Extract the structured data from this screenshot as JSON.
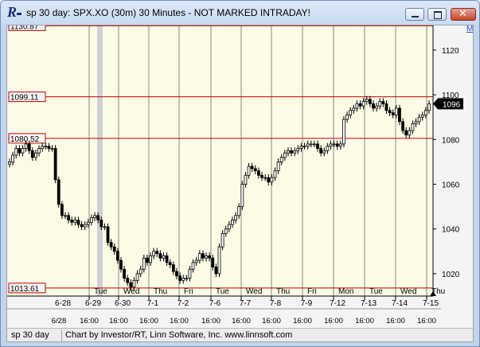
{
  "window": {
    "title": "sp 30 day: SPX.XO (30m) 30 Minutes - NOT MARKED INTRADAY!",
    "minimize_glyph": "",
    "maximize_glyph": "",
    "close_glyph": "✕"
  },
  "toolbar": {
    "m_marker": "M"
  },
  "colors": {
    "price_line": "#c00000",
    "bars": "#000000",
    "plot_bg": "#fbfbe6",
    "vertical_gridlines": "#8a8a8a",
    "current_price_bg": "#000000"
  },
  "status_bar": {
    "chart_name": "sp 30 day",
    "credit": "Chart by Investor/RT, Linn Software, Inc. www.linnsoft.com"
  },
  "chart_data": {
    "type": "candlestick",
    "title": "",
    "ylim": [
      1010,
      1131
    ],
    "y_ticks": [
      1020,
      1040,
      1060,
      1080,
      1100,
      1120
    ],
    "y_tick_labels": [
      "1020",
      "1040",
      "1060",
      "1080",
      "1100",
      "1120"
    ],
    "horizontal_lines": [
      {
        "label": "1130.87",
        "value": 1130.87
      },
      {
        "label": "1099.11",
        "value": 1099.11
      },
      {
        "label": "1080.52",
        "value": 1080.52
      },
      {
        "label": "1013.61",
        "value": 1013.61
      }
    ],
    "current_price": {
      "label": "1096",
      "value": 1096
    },
    "top_left_partial_text": "",
    "days": [
      {
        "weekday": "",
        "date": "6-28",
        "lower": "6/28"
      },
      {
        "weekday": "Tue",
        "date": "6-29",
        "lower": "16:00"
      },
      {
        "weekday": "Wed",
        "date": "6-30",
        "lower": "16:00"
      },
      {
        "weekday": "Thu",
        "date": "7-1",
        "lower": "16:00"
      },
      {
        "weekday": "Fri",
        "date": "7-2",
        "lower": "16:00"
      },
      {
        "weekday": "Tue",
        "date": "7-6",
        "lower": "16:00"
      },
      {
        "weekday": "Wed",
        "date": "7-7",
        "lower": "16:00"
      },
      {
        "weekday": "Thu",
        "date": "7-8",
        "lower": "16:00"
      },
      {
        "weekday": "Fri",
        "date": "7-9",
        "lower": "16:00"
      },
      {
        "weekday": "Mon",
        "date": "7-12",
        "lower": "16:00"
      },
      {
        "weekday": "Tue",
        "date": "7-13",
        "lower": "16:00"
      },
      {
        "weekday": "Wed",
        "date": "7-14",
        "lower": "16:00"
      },
      {
        "weekday": "Thu",
        "date": "7-15",
        "lower": "16:00"
      }
    ],
    "series": [
      {
        "name": "",
        "values": [
          1070,
          1073,
          1076,
          1074,
          1076,
          1078,
          1075,
          1072,
          1074,
          1076,
          1077,
          1077,
          1076,
          1076,
          1062,
          1051,
          1046,
          1046,
          1044,
          1043,
          1044,
          1042,
          1041,
          1042,
          1043,
          1045,
          1046,
          1044,
          1041,
          1041,
          1034,
          1032,
          1030,
          1026,
          1022,
          1018,
          1016,
          1014,
          1017,
          1020,
          1022,
          1027,
          1025,
          1028,
          1030,
          1029,
          1027,
          1028,
          1025,
          1024,
          1021,
          1019,
          1017,
          1018,
          1018,
          1022,
          1025,
          1026,
          1029,
          1027,
          1028,
          1027,
          1023,
          1020,
          1032,
          1038,
          1040,
          1042,
          1044,
          1046,
          1050,
          1060,
          1064,
          1068,
          1067,
          1066,
          1064,
          1063,
          1063,
          1061,
          1063,
          1066,
          1070,
          1072,
          1074,
          1075,
          1074,
          1075,
          1076,
          1077,
          1077,
          1078,
          1078,
          1078,
          1076,
          1074,
          1075,
          1077,
          1078,
          1078,
          1077,
          1078,
          1089,
          1091,
          1093,
          1094,
          1096,
          1095,
          1097,
          1098,
          1096,
          1094,
          1095,
          1097,
          1096,
          1093,
          1092,
          1091,
          1094,
          1088,
          1084,
          1082,
          1084,
          1087,
          1088,
          1090,
          1091,
          1093,
          1096
        ]
      }
    ]
  }
}
